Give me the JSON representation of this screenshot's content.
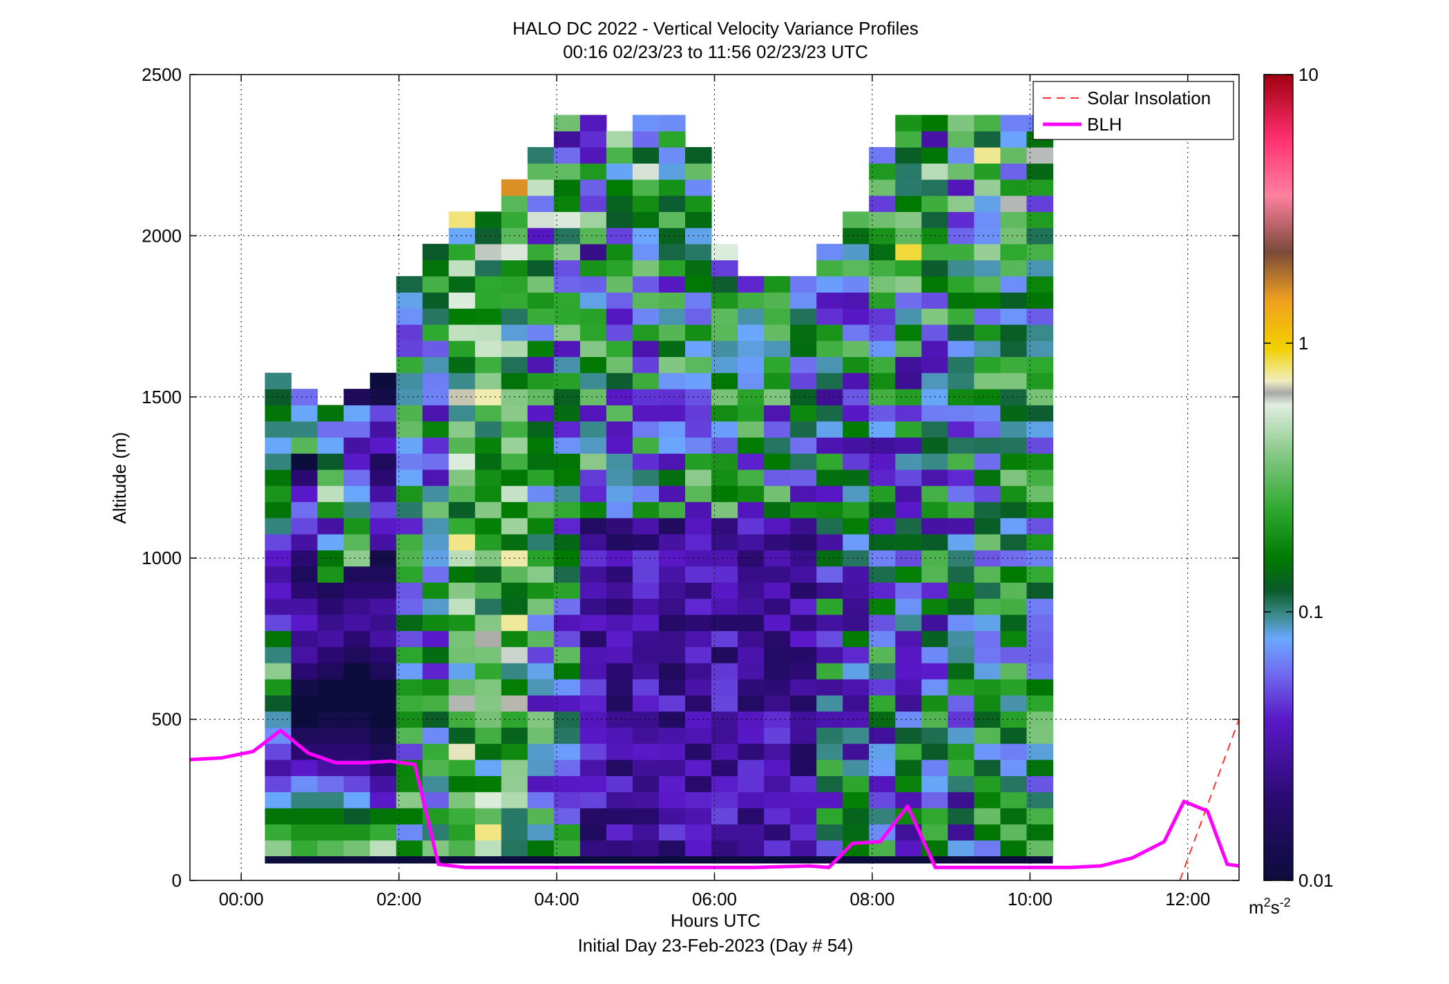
{
  "chart_data": {
    "type": "heatmap",
    "title": "HALO DC 2022 - Vertical Velocity Variance Profiles",
    "subtitle": "00:16 02/23/23 to 11:56 02/23/23  UTC",
    "xlabel": "Hours UTC",
    "xlabel2": "Initial Day 23-Feb-2023 (Day # 54)",
    "ylabel": "Altitude (m)",
    "xlim": [
      -0.65,
      12.65
    ],
    "ylim": [
      0,
      2500
    ],
    "x_ticks": [
      0,
      2,
      4,
      6,
      8,
      10,
      12
    ],
    "x_tick_labels": [
      "00:00",
      "02:00",
      "04:00",
      "06:00",
      "08:00",
      "10:00",
      "12:00"
    ],
    "y_ticks": [
      0,
      500,
      1000,
      1500,
      2000,
      2500
    ],
    "y_tick_labels": [
      "0",
      "500",
      "1000",
      "1500",
      "2000",
      "2500"
    ],
    "grid": "dotted",
    "legend_position": "top-right",
    "colorbar": {
      "scale": "log",
      "range": [
        0.01,
        10
      ],
      "ticks": [
        0.01,
        0.1,
        1,
        10
      ],
      "tick_labels": [
        "0.01",
        "0.1",
        "1",
        "10"
      ],
      "units_base": "m",
      "units_sup1": "2",
      "units_mid": "s",
      "units_sup2": "-2"
    },
    "heatmap": {
      "x_start": 0.3,
      "x_step": 0.333,
      "y_start": 75,
      "y_step": 50,
      "note_rows": "values in m2 s-2, rows bottom to top; columns every ~20 min",
      "columns": [
        [
          0.4,
          0.25,
          0.15,
          0.08,
          0.05,
          0.03,
          0.05,
          0.07,
          0.09,
          0.12,
          0.2,
          0.4,
          0.1,
          0.15,
          0.05,
          0.03,
          0.04,
          0.03,
          0.04,
          0.05,
          0.1,
          0.15,
          0.2,
          0.15,
          0.1,
          0.08,
          0.1,
          0.15,
          0.12,
          0.1
        ],
        [
          0.25,
          0.2,
          0.15,
          0.1,
          0.07,
          0.04,
          0.02,
          0.015,
          0.01,
          0.01,
          0.012,
          0.02,
          0.03,
          0.025,
          0.04,
          0.03,
          0.02,
          0.015,
          0.02,
          0.03,
          0.05,
          0.06,
          0.04,
          0.02,
          0.01,
          0.3,
          0.1,
          0.08,
          0.06
        ],
        [
          0.3,
          0.2,
          0.15,
          0.1,
          0.06,
          0.03,
          0.02,
          0.015,
          0.012,
          0.01,
          0.01,
          0.015,
          0.02,
          0.03,
          0.025,
          0.02,
          0.015,
          0.2,
          0.15,
          0.08,
          0.03,
          0.2,
          0.5,
          0.3,
          0.12,
          0.08,
          0.06,
          0.15
        ],
        [
          0.35,
          0.2,
          0.12,
          0.08,
          0.05,
          0.03,
          0.02,
          0.015,
          0.012,
          0.01,
          0.01,
          0.01,
          0.015,
          0.02,
          0.03,
          0.025,
          0.02,
          0.015,
          0.4,
          0.3,
          0.2,
          0.1,
          0.08,
          0.06,
          0.04,
          0.03,
          0.06,
          0.08,
          0.015
        ],
        [
          0.5,
          0.25,
          0.15,
          0.04,
          0.03,
          0.02,
          0.015,
          0.012,
          0.01,
          0.01,
          0.01,
          0.015,
          0.02,
          0.03,
          0.025,
          0.03,
          0.02,
          0.015,
          0.012,
          0.03,
          0.04,
          0.05,
          0.03,
          0.02,
          0.015,
          0.04,
          0.03,
          0.05,
          0.012,
          0.01
        ]
      ]
    },
    "series": [
      {
        "name": "Solar Insolation",
        "style": "dashed",
        "color": "#ff3333",
        "x": [
          11.9,
          12.65
        ],
        "y": [
          0,
          500
        ]
      },
      {
        "name": "BLH",
        "style": "solid",
        "color": "#ff00ff",
        "x": [
          -0.65,
          -0.25,
          0.15,
          0.5,
          0.85,
          1.2,
          1.55,
          1.9,
          2.2,
          2.5,
          2.85,
          3.5,
          4.5,
          5.5,
          6.5,
          7.2,
          7.45,
          7.75,
          8.1,
          8.45,
          8.8,
          9.5,
          10.5,
          10.9,
          11.3,
          11.7,
          11.95,
          12.25,
          12.5,
          12.65
        ],
        "y": [
          375,
          380,
          400,
          465,
          395,
          365,
          365,
          370,
          360,
          50,
          40,
          40,
          40,
          40,
          40,
          45,
          40,
          115,
          120,
          230,
          40,
          40,
          40,
          45,
          70,
          120,
          245,
          215,
          50,
          45
        ]
      }
    ]
  },
  "legend": {
    "items": [
      {
        "label": "Solar Insolation",
        "color": "#ff3333",
        "style": "dashed"
      },
      {
        "label": "BLH",
        "color": "#ff00ff",
        "style": "solid"
      }
    ]
  }
}
